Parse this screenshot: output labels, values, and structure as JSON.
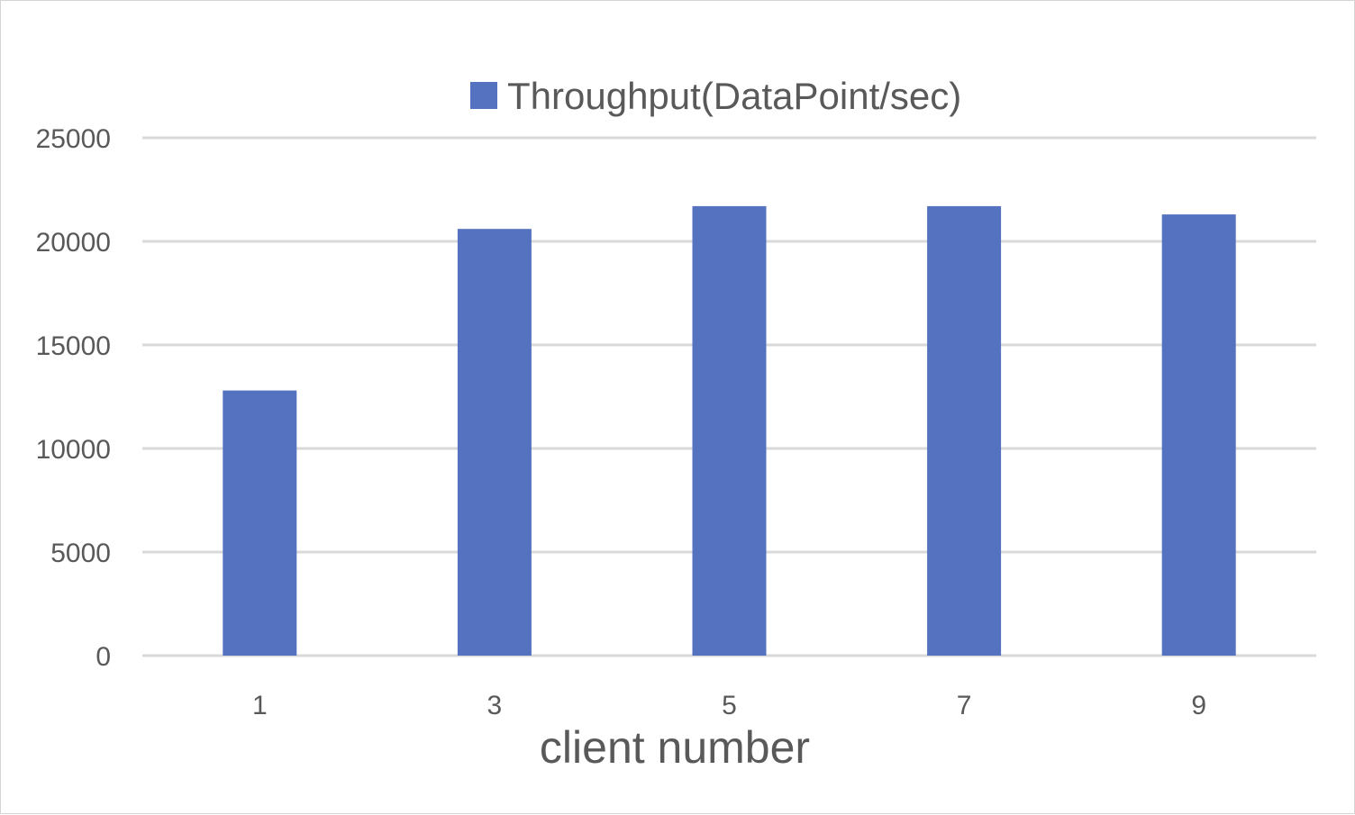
{
  "chart_data": {
    "type": "bar",
    "categories": [
      "1",
      "3",
      "5",
      "7",
      "9"
    ],
    "series": [
      {
        "name": "Throughput(DataPoint/sec)",
        "values": [
          12800,
          20600,
          21700,
          21700,
          21300
        ],
        "color": "#5572c0"
      }
    ],
    "xlabel": "client number",
    "ylabel": "",
    "ylim": [
      0,
      25000
    ],
    "yticks": [
      0,
      5000,
      10000,
      15000,
      20000,
      25000
    ],
    "grid": true,
    "legend_position": "top"
  }
}
